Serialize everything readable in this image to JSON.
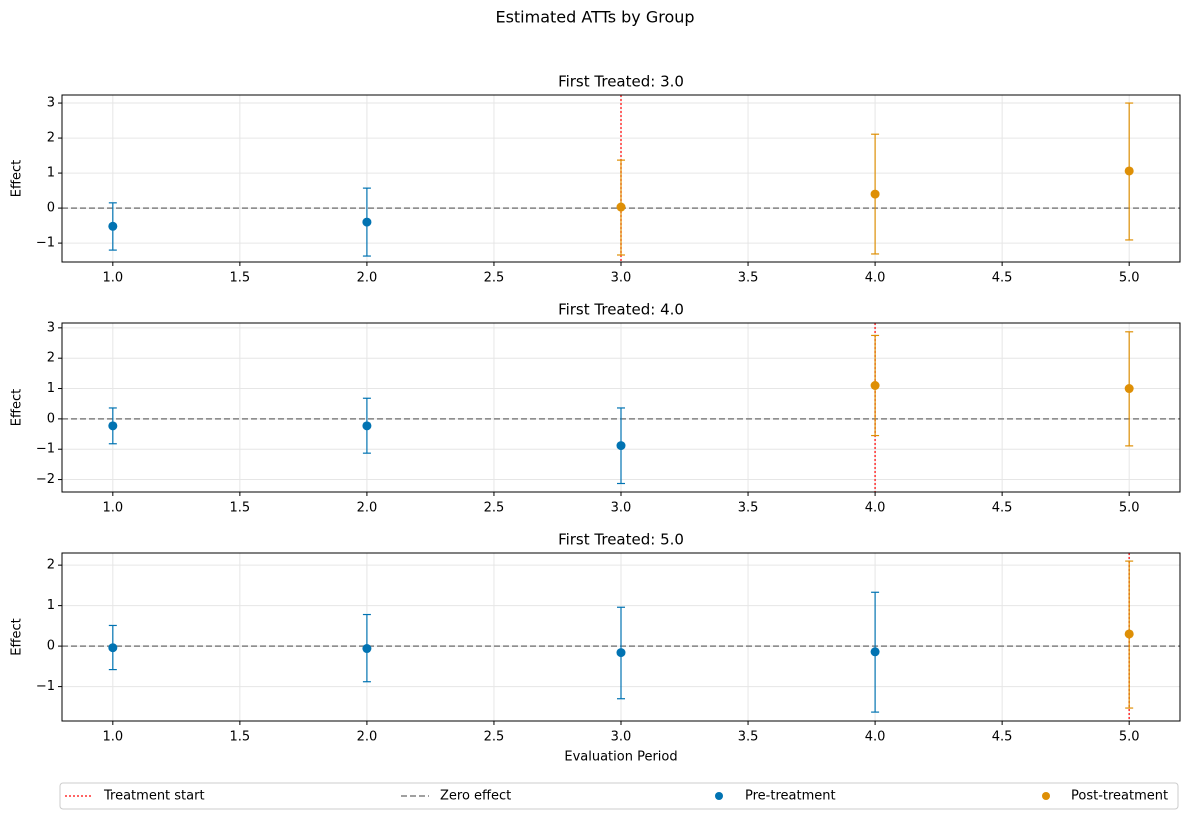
{
  "title": "Estimated ATTs by Group",
  "legend_position": "bottom",
  "chart_data": [
    {
      "type": "errorbar",
      "title": "First Treated: 3.0",
      "ylabel": "Effect",
      "xlim": [
        0.8,
        5.2
      ],
      "ylim": [
        -1.54,
        3.23
      ],
      "grid": true,
      "xticks": [
        {
          "value": 1,
          "label": "1.0"
        },
        {
          "value": 1.5,
          "label": "1.5"
        },
        {
          "value": 2,
          "label": "2.0"
        },
        {
          "value": 2.5,
          "label": "2.5"
        },
        {
          "value": 3,
          "label": "3.0"
        },
        {
          "value": 3.5,
          "label": "3.5"
        },
        {
          "value": 4,
          "label": "4.0"
        },
        {
          "value": 4.5,
          "label": "4.5"
        },
        {
          "value": 5,
          "label": "5.0"
        }
      ],
      "yticks": [
        {
          "value": -1,
          "label": "−1"
        },
        0,
        1,
        2,
        3
      ],
      "vlines": [
        {
          "name": "Treatment start",
          "value": 3,
          "color": "#ff3030",
          "style": "dotted"
        }
      ],
      "hlines": [
        {
          "name": "Zero effect",
          "value": 0,
          "color": "#808080",
          "style": "dashed"
        }
      ],
      "series": [
        {
          "name": "Pre-treatment",
          "color": "#0173b2",
          "x": [
            1,
            2
          ],
          "values": [
            -0.52,
            -0.4
          ],
          "lower": [
            -1.2,
            -1.37
          ],
          "upper": [
            0.15,
            0.57
          ]
        },
        {
          "name": "Post-treatment",
          "color": "#de8f05",
          "x": [
            3,
            4,
            5
          ],
          "values": [
            0.03,
            0.4,
            1.06
          ],
          "lower": [
            -1.34,
            -1.31,
            -0.91
          ],
          "upper": [
            1.37,
            2.11,
            3.0
          ]
        }
      ]
    },
    {
      "type": "errorbar",
      "title": "First Treated: 4.0",
      "ylabel": "Effect",
      "xlim": [
        0.8,
        5.2
      ],
      "ylim": [
        -2.41,
        3.16
      ],
      "grid": true,
      "xticks": [
        {
          "value": 1,
          "label": "1.0"
        },
        {
          "value": 1.5,
          "label": "1.5"
        },
        {
          "value": 2,
          "label": "2.0"
        },
        {
          "value": 2.5,
          "label": "2.5"
        },
        {
          "value": 3,
          "label": "3.0"
        },
        {
          "value": 3.5,
          "label": "3.5"
        },
        {
          "value": 4,
          "label": "4.0"
        },
        {
          "value": 4.5,
          "label": "4.5"
        },
        {
          "value": 5,
          "label": "5.0"
        }
      ],
      "yticks": [
        {
          "value": -2,
          "label": "−2"
        },
        {
          "value": -1,
          "label": "−1"
        },
        0,
        1,
        2,
        3
      ],
      "vlines": [
        {
          "name": "Treatment start",
          "value": 4,
          "color": "#ff3030",
          "style": "dotted"
        }
      ],
      "hlines": [
        {
          "name": "Zero effect",
          "value": 0,
          "color": "#808080",
          "style": "dashed"
        }
      ],
      "series": [
        {
          "name": "Pre-treatment",
          "color": "#0173b2",
          "x": [
            1,
            2,
            3
          ],
          "values": [
            -0.23,
            -0.23,
            -0.88
          ],
          "lower": [
            -0.82,
            -1.13,
            -2.13
          ],
          "upper": [
            0.36,
            0.68,
            0.36
          ]
        },
        {
          "name": "Post-treatment",
          "color": "#de8f05",
          "x": [
            4,
            5
          ],
          "values": [
            1.1,
            1.0
          ],
          "lower": [
            -0.55,
            -0.89
          ],
          "upper": [
            2.75,
            2.87
          ]
        }
      ]
    },
    {
      "type": "errorbar",
      "title": "First Treated: 5.0",
      "ylabel": "Effect",
      "xlabel": "Evaluation Period",
      "xlim": [
        0.8,
        5.2
      ],
      "ylim": [
        -1.85,
        2.3
      ],
      "grid": true,
      "xticks": [
        {
          "value": 1,
          "label": "1.0"
        },
        {
          "value": 1.5,
          "label": "1.5"
        },
        {
          "value": 2,
          "label": "2.0"
        },
        {
          "value": 2.5,
          "label": "2.5"
        },
        {
          "value": 3,
          "label": "3.0"
        },
        {
          "value": 3.5,
          "label": "3.5"
        },
        {
          "value": 4,
          "label": "4.0"
        },
        {
          "value": 4.5,
          "label": "4.5"
        },
        {
          "value": 5,
          "label": "5.0"
        }
      ],
      "yticks": [
        {
          "value": -1,
          "label": "−1"
        },
        0,
        1,
        2
      ],
      "vlines": [
        {
          "name": "Treatment start",
          "value": 5,
          "color": "#ff3030",
          "style": "dotted"
        }
      ],
      "hlines": [
        {
          "name": "Zero effect",
          "value": 0,
          "color": "#808080",
          "style": "dashed"
        }
      ],
      "series": [
        {
          "name": "Pre-treatment",
          "color": "#0173b2",
          "x": [
            1,
            2,
            3,
            4
          ],
          "values": [
            -0.04,
            -0.06,
            -0.16,
            -0.14
          ],
          "lower": [
            -0.58,
            -0.88,
            -1.3,
            -1.63
          ],
          "upper": [
            0.51,
            0.78,
            0.96,
            1.33
          ]
        },
        {
          "name": "Post-treatment",
          "color": "#de8f05",
          "x": [
            5
          ],
          "values": [
            0.3
          ],
          "lower": [
            -1.53
          ],
          "upper": [
            2.1
          ]
        }
      ]
    }
  ]
}
